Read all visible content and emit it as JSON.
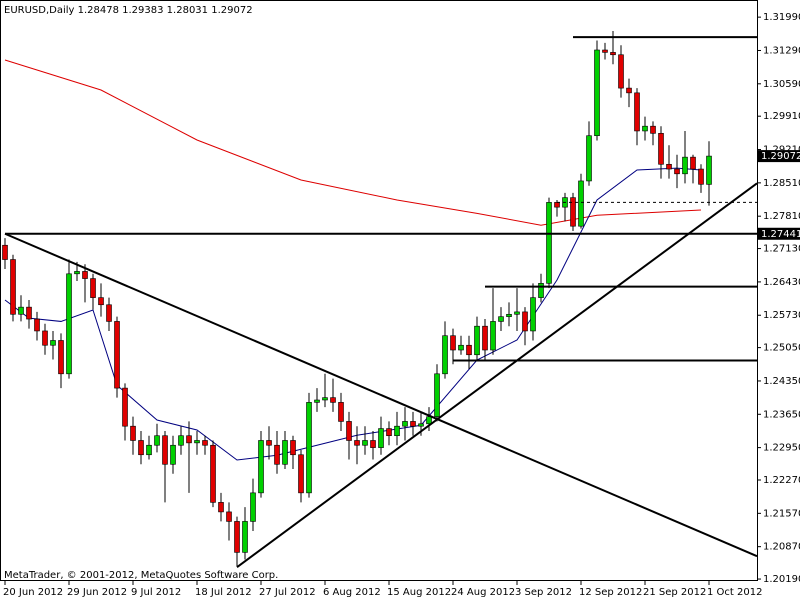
{
  "chart_data": {
    "type": "candlestick",
    "title": "EURUSD,Daily  1.28478 1.29383 1.28031 1.29072",
    "footer": "MetaTrader, © 2001-2012, MetaQuotes Software Corp.",
    "up_color": "#00d000",
    "down_color": "#e00000",
    "categories": [
      "20 Jun 2012",
      null,
      null,
      null,
      null,
      null,
      null,
      null,
      "29 Jun 2012",
      null,
      null,
      null,
      null,
      null,
      null,
      null,
      "9 Jul 2012",
      null,
      null,
      null,
      null,
      null,
      null,
      null,
      "18 Jul 2012",
      null,
      null,
      null,
      null,
      null,
      null,
      null,
      "27 Jul 2012",
      null,
      null,
      null,
      null,
      null,
      null,
      null,
      "6 Aug 2012",
      null,
      null,
      null,
      null,
      null,
      null,
      null,
      "15 Aug 2012",
      null,
      null,
      null,
      null,
      null,
      null,
      null,
      "24 Aug 2012",
      null,
      null,
      null,
      null,
      null,
      null,
      null,
      "3 Sep 2012",
      null,
      null,
      null,
      null,
      null,
      null,
      null,
      "12 Sep 2012",
      null,
      null,
      null,
      null,
      null,
      null,
      null,
      "21 Sep 2012",
      null,
      null,
      null,
      null,
      null,
      null,
      null,
      "1 Oct 2012"
    ],
    "open": [
      1.272,
      1.269,
      1.2575,
      1.259,
      1.2565,
      1.254,
      1.251,
      1.252,
      1.245,
      1.266,
      1.2665,
      1.265,
      1.261,
      1.2595,
      1.256,
      1.242,
      1.234,
      1.231,
      1.228,
      1.23,
      1.232,
      1.226,
      1.23,
      1.232,
      1.2305,
      1.231,
      1.23,
      1.218,
      1.216,
      1.214,
      1.2075,
      1.214,
      1.22,
      1.231,
      1.23,
      1.226,
      1.231,
      1.228,
      1.22,
      1.239,
      1.2395,
      1.24,
      1.239,
      1.235,
      1.231,
      1.23,
      1.231,
      1.2295,
      1.2335,
      1.232,
      1.234,
      1.235,
      1.234,
      1.2345,
      1.236,
      1.245,
      1.253,
      1.25,
      1.251,
      1.249,
      1.255,
      1.25,
      1.256,
      1.257,
      1.2575,
      1.258,
      1.254,
      1.261,
      1.264,
      1.281,
      1.28,
      1.282,
      1.276,
      1.2855,
      1.295,
      1.313,
      1.3125,
      1.312,
      1.305,
      1.304,
      1.296,
      1.297,
      1.2955,
      1.289,
      1.288,
      1.287,
      1.2905,
      1.288,
      1.28478
    ],
    "high": [
      1.2735,
      1.27,
      1.2615,
      1.2605,
      1.258,
      1.2555,
      1.254,
      1.2535,
      1.269,
      1.2685,
      1.268,
      1.266,
      1.264,
      1.261,
      1.257,
      1.243,
      1.236,
      1.233,
      1.232,
      1.2345,
      1.233,
      1.232,
      1.234,
      1.235,
      1.233,
      1.232,
      1.231,
      1.22,
      1.218,
      1.215,
      1.217,
      1.223,
      1.233,
      1.234,
      1.233,
      1.233,
      1.232,
      1.229,
      1.241,
      1.242,
      1.245,
      1.244,
      1.241,
      1.237,
      1.234,
      1.234,
      1.233,
      1.236,
      1.235,
      1.237,
      1.238,
      1.237,
      1.237,
      1.238,
      1.247,
      1.256,
      1.2545,
      1.253,
      1.253,
      1.257,
      1.2565,
      1.263,
      1.259,
      1.26,
      1.263,
      1.259,
      1.264,
      1.266,
      1.282,
      1.2815,
      1.283,
      1.283,
      1.287,
      1.298,
      1.315,
      1.3145,
      1.317,
      1.314,
      1.307,
      1.305,
      1.299,
      1.298,
      1.297,
      1.293,
      1.291,
      1.296,
      1.291,
      1.289,
      1.29383
    ],
    "low": [
      1.267,
      1.256,
      1.256,
      1.2545,
      1.252,
      1.249,
      1.248,
      1.242,
      1.244,
      1.2645,
      1.26,
      1.2585,
      1.257,
      1.254,
      1.24,
      1.231,
      1.228,
      1.226,
      1.227,
      1.2285,
      1.218,
      1.224,
      1.228,
      1.22,
      1.228,
      1.228,
      1.217,
      1.214,
      1.21,
      1.2045,
      1.206,
      1.212,
      1.219,
      1.227,
      1.224,
      1.225,
      1.225,
      1.218,
      1.219,
      1.237,
      1.238,
      1.237,
      1.233,
      1.227,
      1.226,
      1.228,
      1.227,
      1.228,
      1.23,
      1.23,
      1.231,
      1.232,
      1.232,
      1.233,
      1.235,
      1.244,
      1.247,
      1.249,
      1.246,
      1.248,
      1.248,
      1.249,
      1.254,
      1.255,
      1.254,
      1.251,
      1.252,
      1.26,
      1.263,
      1.278,
      1.277,
      1.275,
      1.2755,
      1.2845,
      1.294,
      1.311,
      1.31,
      1.303,
      1.301,
      1.293,
      1.294,
      1.293,
      1.286,
      1.286,
      1.284,
      1.285,
      1.285,
      1.283,
      1.28031
    ],
    "close": [
      1.269,
      1.2575,
      1.259,
      1.2565,
      1.254,
      1.251,
      1.252,
      1.245,
      1.266,
      1.2665,
      1.265,
      1.261,
      1.2595,
      1.256,
      1.242,
      1.234,
      1.231,
      1.228,
      1.23,
      1.232,
      1.226,
      1.23,
      1.232,
      1.2305,
      1.231,
      1.23,
      1.218,
      1.216,
      1.214,
      1.2075,
      1.214,
      1.22,
      1.231,
      1.23,
      1.226,
      1.231,
      1.228,
      1.22,
      1.239,
      1.2395,
      1.24,
      1.239,
      1.235,
      1.231,
      1.23,
      1.231,
      1.2295,
      1.2335,
      1.232,
      1.234,
      1.235,
      1.234,
      1.2345,
      1.236,
      1.245,
      1.253,
      1.25,
      1.251,
      1.249,
      1.255,
      1.25,
      1.256,
      1.257,
      1.2575,
      1.258,
      1.254,
      1.261,
      1.264,
      1.281,
      1.28,
      1.282,
      1.276,
      1.2855,
      1.295,
      1.313,
      1.3125,
      1.312,
      1.305,
      1.304,
      1.296,
      1.297,
      1.2955,
      1.289,
      1.288,
      1.287,
      1.2905,
      1.288,
      1.2848,
      1.29072
    ],
    "ma": [
      {
        "color": "#dd0000",
        "x": [
          0,
          12,
          24,
          37,
          49,
          59,
          67,
          74,
          87
        ],
        "values": [
          1.3109,
          1.3046,
          1.2941,
          1.2857,
          1.2815,
          1.2787,
          1.2762,
          1.2783,
          1.2794
        ]
      },
      {
        "color": "#000080",
        "x": [
          0,
          3,
          7,
          11,
          14,
          19,
          24,
          29,
          34,
          39,
          44,
          52,
          59,
          64,
          69,
          74,
          79,
          84,
          87
        ],
        "values": [
          1.2605,
          1.2567,
          1.256,
          1.2584,
          1.2426,
          1.2353,
          1.2332,
          1.2269,
          1.2279,
          1.23,
          1.2321,
          1.2342,
          1.2479,
          1.2521,
          1.2647,
          1.2815,
          1.2878,
          1.2882,
          1.2878
        ]
      }
    ],
    "hlines": [
      {
        "price": 1.3157,
        "from": 71
      },
      {
        "price": 1.27441,
        "from": 0,
        "labeled": true
      },
      {
        "price": 1.2633,
        "from": 60
      },
      {
        "price": 1.2478,
        "from": 56
      },
      {
        "price": 1.281,
        "from": 69,
        "dashed": true
      }
    ],
    "trendlines": [
      {
        "from": [
          0,
          1.27441
        ],
        "to": [
          94,
          1.2067
        ]
      },
      {
        "from": [
          29,
          1.2044
        ],
        "to": [
          94,
          1.285
        ]
      }
    ],
    "current_price": 1.29072,
    "ylim": [
      1.2017,
      1.3235
    ],
    "yticks": [
      {
        "value": 1.3199,
        "label": "1.31990"
      },
      {
        "value": 1.3129,
        "label": "1.31290"
      },
      {
        "value": 1.3059,
        "label": "1.30590"
      },
      {
        "value": 1.2991,
        "label": "1.29910"
      },
      {
        "value": 1.2921,
        "label": "1.29210"
      },
      {
        "value": 1.2851,
        "label": "1.28510"
      },
      {
        "value": 1.2781,
        "label": "1.27810"
      },
      {
        "value": 1.2713,
        "label": "1.27130"
      },
      {
        "value": 1.2643,
        "label": "1.26430"
      },
      {
        "value": 1.2573,
        "label": "1.25730"
      },
      {
        "value": 1.2505,
        "label": "1.25050"
      },
      {
        "value": 1.2435,
        "label": "1.24350"
      },
      {
        "value": 1.2365,
        "label": "1.23650"
      },
      {
        "value": 1.2295,
        "label": "1.22950"
      },
      {
        "value": 1.2227,
        "label": "1.22270"
      },
      {
        "value": 1.2157,
        "label": "1.21570"
      },
      {
        "value": 1.2087,
        "label": "1.20870"
      },
      {
        "value": 1.2019,
        "label": "1.20190"
      }
    ]
  }
}
